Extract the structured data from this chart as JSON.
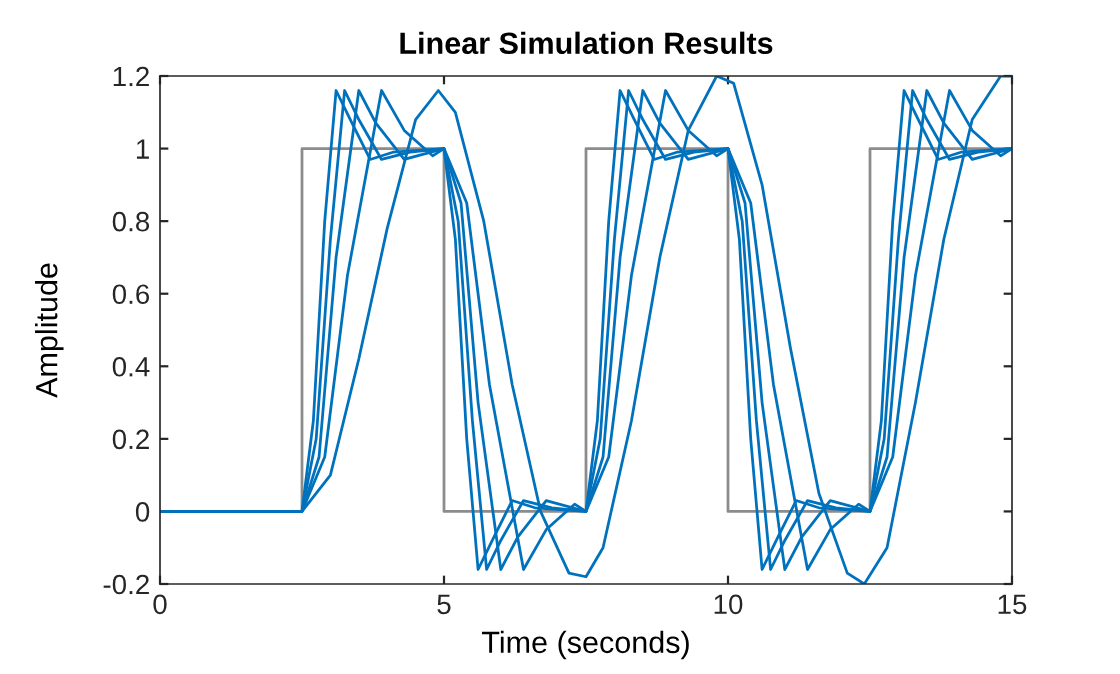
{
  "chart_data": {
    "type": "line",
    "title": "Linear Simulation Results",
    "xlabel": "Time (seconds)",
    "ylabel": "Amplitude",
    "xlim": [
      0,
      15
    ],
    "xticks": [
      0,
      5,
      10,
      15
    ],
    "ylim": [
      -0.2,
      1.2
    ],
    "yticks": [
      {
        "value": -0.2,
        "label": "-0.2"
      },
      0,
      0.2,
      0.4,
      0.6,
      0.8,
      1,
      1.2
    ],
    "grid": false,
    "series": [
      {
        "type": "step",
        "color": "#8c8c8c",
        "x": [
          0,
          2.5,
          5,
          7.5,
          10,
          12.5,
          15
        ],
        "values": [
          0,
          1,
          0,
          1,
          0,
          1,
          1
        ]
      },
      {
        "color": "#0072bd",
        "x": [
          0,
          2.5,
          2.7,
          2.9,
          3.1,
          3.35,
          3.7,
          4.1,
          5,
          5.2,
          5.4,
          5.6,
          5.85,
          6.2,
          6.6,
          7.5,
          7.7,
          7.9,
          8.1,
          8.35,
          8.7,
          9.1,
          10,
          10.2,
          10.4,
          10.6,
          10.85,
          11.2,
          11.6,
          12.5,
          12.7,
          12.9,
          13.1,
          13.35,
          13.7,
          14.1,
          15
        ],
        "values": [
          0,
          0,
          0.25,
          0.8,
          1.16,
          1.08,
          0.97,
          0.99,
          1,
          0.75,
          0.2,
          -0.16,
          -0.08,
          0.03,
          0.01,
          0,
          0.25,
          0.8,
          1.16,
          1.08,
          0.97,
          0.99,
          1,
          0.75,
          0.2,
          -0.16,
          -0.08,
          0.03,
          0.01,
          0,
          0.25,
          0.8,
          1.16,
          1.08,
          0.97,
          0.99,
          1
        ]
      },
      {
        "color": "#0072bd",
        "x": [
          0,
          2.5,
          2.75,
          3,
          3.25,
          3.5,
          3.9,
          4.4,
          5,
          5.25,
          5.5,
          5.75,
          6,
          6.4,
          6.9,
          7.5,
          7.75,
          8,
          8.25,
          8.5,
          8.9,
          9.4,
          10,
          10.25,
          10.5,
          10.75,
          11,
          11.4,
          11.9,
          12.5,
          12.75,
          13,
          13.25,
          13.5,
          13.9,
          14.4,
          15
        ],
        "values": [
          0,
          0,
          0.2,
          0.75,
          1.16,
          1.08,
          0.97,
          0.99,
          1,
          0.8,
          0.25,
          -0.16,
          -0.08,
          0.03,
          0.01,
          0,
          0.2,
          0.75,
          1.16,
          1.08,
          0.97,
          0.99,
          1,
          0.8,
          0.25,
          -0.16,
          -0.08,
          0.03,
          0.01,
          0,
          0.2,
          0.75,
          1.16,
          1.08,
          0.97,
          0.99,
          1
        ]
      },
      {
        "color": "#0072bd",
        "x": [
          0,
          2.5,
          2.8,
          3.1,
          3.5,
          3.8,
          4.3,
          5,
          5.3,
          5.6,
          6,
          6.3,
          6.8,
          7.5,
          7.8,
          8.1,
          8.5,
          8.8,
          9.3,
          10,
          10.3,
          10.6,
          11,
          11.3,
          11.8,
          12.5,
          12.8,
          13.1,
          13.5,
          13.8,
          14.3,
          15
        ],
        "values": [
          0,
          0,
          0.15,
          0.7,
          1.16,
          1.07,
          0.97,
          1,
          0.85,
          0.3,
          -0.16,
          -0.07,
          0.03,
          0,
          0.15,
          0.7,
          1.16,
          1.07,
          0.97,
          1,
          0.85,
          0.3,
          -0.16,
          -0.07,
          0.03,
          0,
          0.15,
          0.7,
          1.16,
          1.07,
          0.97,
          1
        ]
      },
      {
        "color": "#0072bd",
        "x": [
          0,
          2.5,
          2.9,
          3.3,
          3.9,
          4.3,
          4.8,
          5,
          5.4,
          5.8,
          6.4,
          6.8,
          7.3,
          7.5,
          7.9,
          8.3,
          8.9,
          9.3,
          9.8,
          10,
          10.4,
          10.8,
          11.4,
          11.8,
          12.3,
          12.5,
          12.9,
          13.3,
          13.9,
          14.3,
          14.8,
          15
        ],
        "values": [
          0,
          0,
          0.15,
          0.65,
          1.16,
          1.05,
          0.98,
          1,
          0.85,
          0.35,
          -0.16,
          -0.05,
          0.02,
          0,
          0.15,
          0.65,
          1.16,
          1.05,
          0.98,
          1,
          0.85,
          0.35,
          -0.16,
          -0.05,
          0.02,
          0,
          0.15,
          0.65,
          1.16,
          1.05,
          0.98,
          1
        ]
      },
      {
        "color": "#0072bd",
        "x": [
          0,
          2.5,
          3,
          3.5,
          4,
          4.5,
          4.9,
          5.2,
          5.7,
          6.2,
          6.7,
          7.2,
          7.5,
          7.8,
          8.3,
          8.8,
          9.3,
          9.8,
          10.1,
          10.6,
          11.1,
          11.6,
          12.1,
          12.4,
          12.8,
          13.3,
          13.8,
          14.3,
          14.8,
          15
        ],
        "values": [
          0,
          0,
          0.1,
          0.42,
          0.78,
          1.08,
          1.16,
          1.1,
          0.8,
          0.35,
          0,
          -0.17,
          -0.18,
          -0.1,
          0.25,
          0.7,
          1.05,
          1.2,
          1.18,
          0.9,
          0.45,
          0.05,
          -0.17,
          -0.2,
          -0.1,
          0.3,
          0.75,
          1.08,
          1.2,
          1.2
        ]
      }
    ]
  }
}
